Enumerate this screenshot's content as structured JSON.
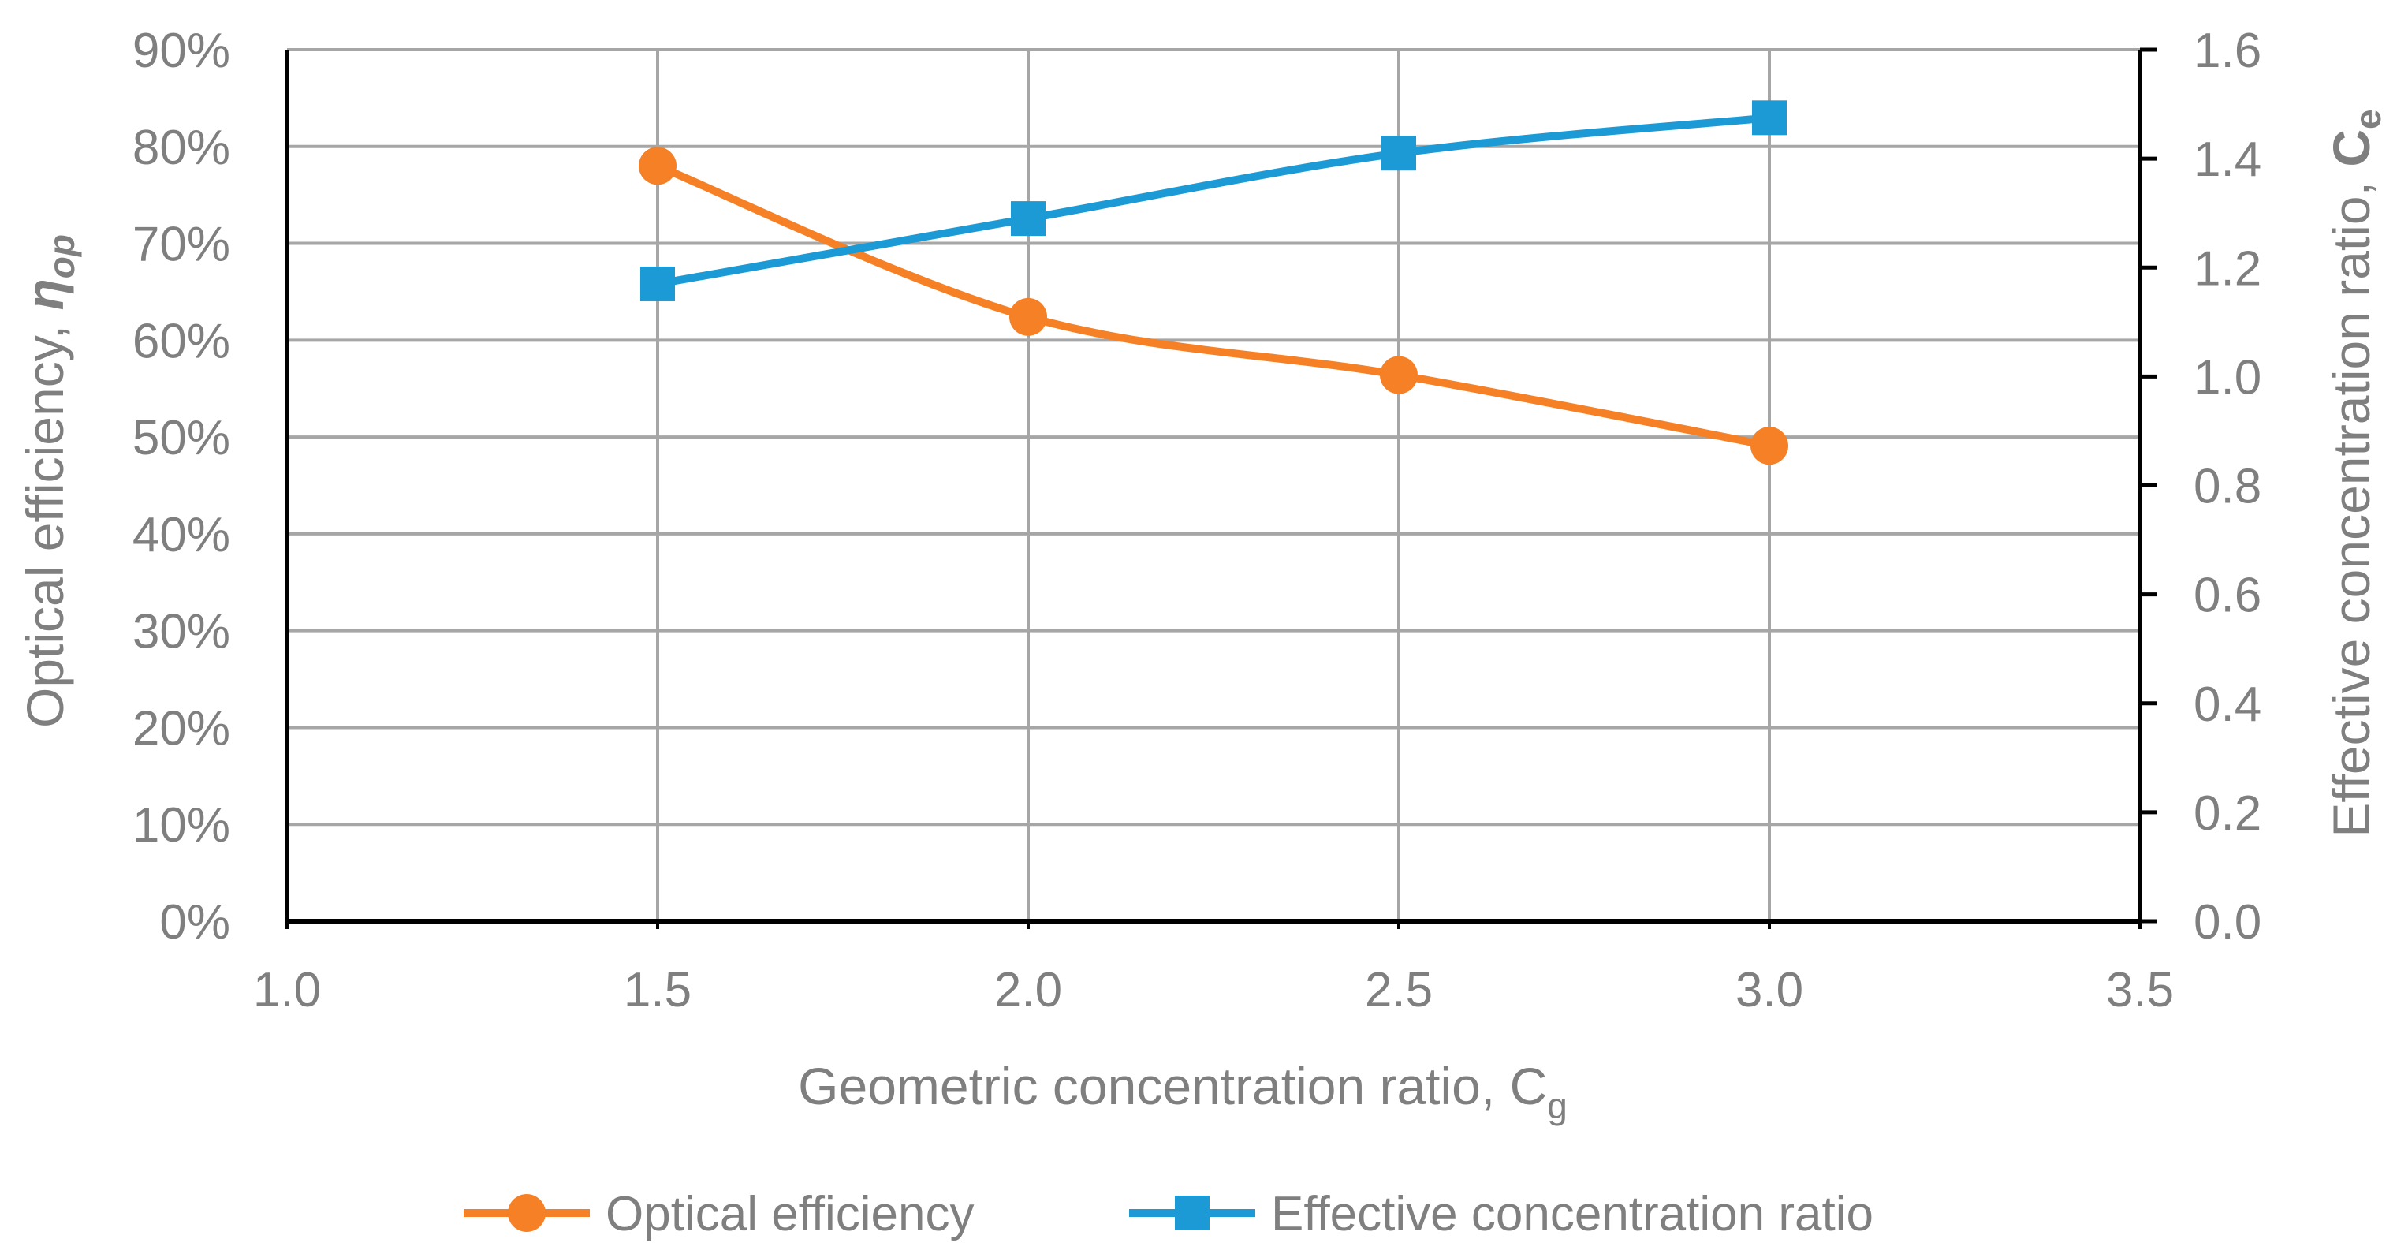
{
  "chart_data": {
    "type": "line",
    "title": "",
    "xlabel": "Geometric concentration ratio, C",
    "xlabel_sub": "g",
    "ylabel_left": "Optical efficiency, ",
    "ylabel_left_symbol": "η",
    "ylabel_left_sub": "op",
    "ylabel_right": "Effective concentration ratio, ",
    "ylabel_right_symbol": "C",
    "ylabel_right_sub": "e",
    "xlim": [
      1.0,
      3.5
    ],
    "ylim_left": [
      0,
      0.9
    ],
    "ylim_right": [
      0,
      1.6
    ],
    "x_ticks": [
      "1.0",
      "1.5",
      "2.0",
      "2.5",
      "3.0",
      "3.5"
    ],
    "y_left_ticks": [
      "0%",
      "10%",
      "20%",
      "30%",
      "40%",
      "50%",
      "60%",
      "70%",
      "80%",
      "90%"
    ],
    "y_right_ticks": [
      "0.0",
      "0.2",
      "0.4",
      "0.6",
      "0.8",
      "1.0",
      "1.2",
      "1.4",
      "1.6"
    ],
    "grid": true,
    "legend_position": "bottom",
    "series": [
      {
        "name": "Optical efficiency",
        "axis": "left",
        "color": "#f58025",
        "marker": "circle",
        "x": [
          1.5,
          2.0,
          2.5,
          3.0
        ],
        "values": [
          0.78,
          0.624,
          0.564,
          0.491
        ]
      },
      {
        "name": "Effective concentration ratio",
        "axis": "right",
        "color": "#1b9ad6",
        "marker": "square",
        "x": [
          1.5,
          2.0,
          2.5,
          3.0
        ],
        "values": [
          1.17,
          1.29,
          1.41,
          1.475
        ]
      }
    ]
  }
}
